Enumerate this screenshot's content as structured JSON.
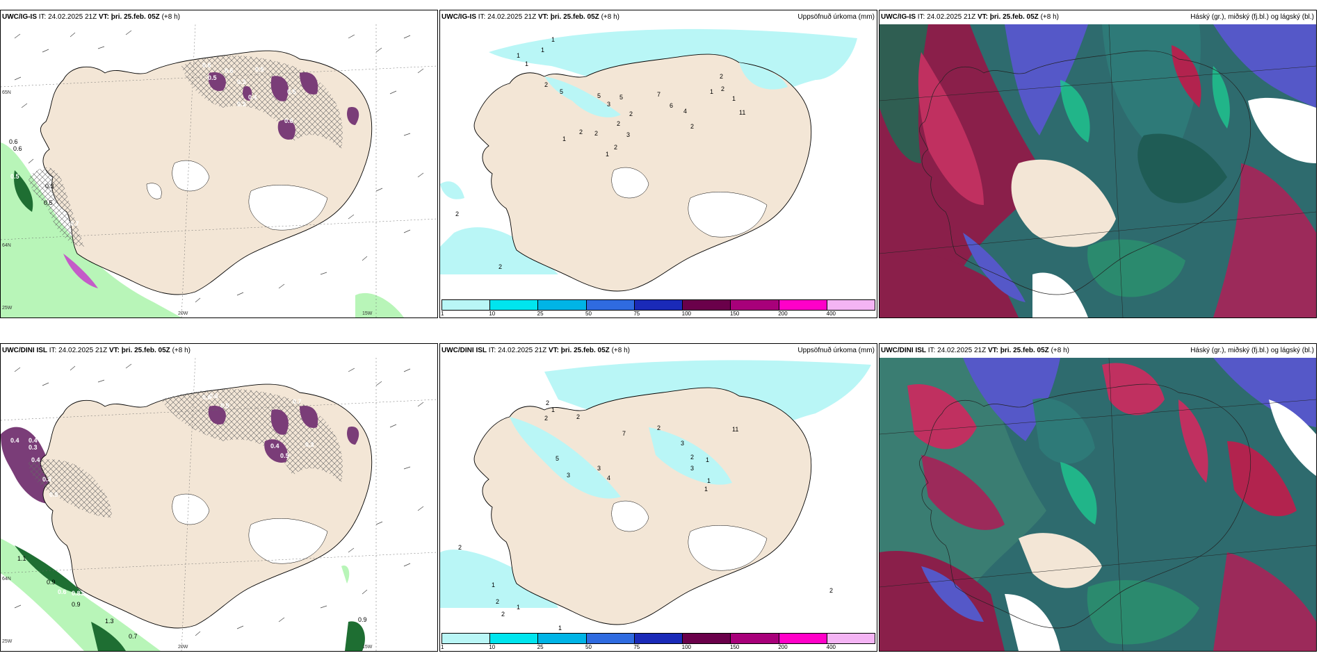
{
  "panels": {
    "p1": {
      "model": "UWC/IG-IS",
      "it": "IT: 24.02.2025 21Z",
      "vt": "VT: þri. 25.feb. 05Z",
      "lead": "(+8 h)",
      "right": ""
    },
    "p2": {
      "model": "UWC/IG-IS",
      "it": "IT: 24.02.2025 21Z",
      "vt": "VT: þri. 25.feb. 05Z",
      "lead": "(+8 h)",
      "right": "Uppsöfnuð úrkoma (mm)"
    },
    "p3": {
      "model": "UWC/IG-IS",
      "it": "IT: 24.02.2025 21Z",
      "vt": "VT: þri. 25.feb. 05Z",
      "lead": "(+8 h)",
      "right": "Háský (gr.), miðský (fj.bl.) og lágský (bl.)"
    },
    "p4": {
      "model": "UWC/DINI ISL",
      "it": "IT: 24.02.2025 21Z",
      "vt": "VT: þri. 25.feb. 05Z",
      "lead": "(+8 h)",
      "right": ""
    },
    "p5": {
      "model": "UWC/DINI ISL",
      "it": "IT: 24.02.2025 21Z",
      "vt": "VT: þri. 25.feb. 05Z",
      "lead": "(+8 h)",
      "right": "Uppsöfnuð úrkoma (mm)"
    },
    "p6": {
      "model": "UWC/DINI ISL",
      "it": "IT: 24.02.2025 21Z",
      "vt": "VT: þri. 25.feb. 05Z",
      "lead": "(+8 h)",
      "right": "Háský (gr.), miðský (fj.bl.) og lágský (bl.)"
    }
  },
  "axis_labels": {
    "lat65": "65N",
    "lat64": "64N",
    "lon20": "20W",
    "lon15": "15W",
    "lon25": "25W"
  },
  "precip_legend": {
    "colors": [
      "#b9f6f6",
      "#00e5ee",
      "#00b4e6",
      "#2f6be0",
      "#1a2ab8",
      "#6a004a",
      "#a8007a",
      "#ff00c8",
      "#f4b4f4"
    ],
    "ticks": [
      "1",
      "10",
      "25",
      "50",
      "75",
      "100",
      "150",
      "200",
      "400"
    ]
  },
  "labels": {
    "p1": [
      "0.6",
      "0.6",
      "0.5",
      "0.3",
      "0.5",
      "0.7",
      "0.6",
      "0.5",
      "0.6",
      "0.3",
      "0.4",
      "0.3",
      "0.5",
      "0.5",
      "0.6"
    ],
    "p2": [
      "1",
      "1",
      "1",
      "1",
      "2",
      "5",
      "5",
      "3",
      "5",
      "7",
      "6",
      "2",
      "2",
      "3",
      "4",
      "11",
      "2",
      "2",
      "1",
      "2",
      "1",
      "1",
      "2",
      "2",
      "1",
      "2",
      "2",
      "2"
    ],
    "p4": [
      "0.4",
      "0.4",
      "0.3",
      "0.4",
      "0.3",
      "0.5",
      "0.6",
      "0.6",
      "0.5",
      "0.7",
      "0.4",
      "0.5",
      "0.3",
      "1.1",
      "0.9",
      "0.6",
      "0.83",
      "0.9",
      "1.3",
      "0.7",
      "0.9"
    ],
    "p5": [
      "2",
      "1",
      "2",
      "2",
      "5",
      "3",
      "3",
      "4",
      "7",
      "2",
      "11",
      "3",
      "2",
      "1",
      "3",
      "1",
      "2",
      "1",
      "2",
      "2",
      "1",
      "1",
      "2",
      "1"
    ]
  },
  "colors": {
    "land": "#f3e6d6",
    "ice": "#ffffff",
    "sea": "#ffffff",
    "cyan": "#b9f6f6",
    "purple": "#7a3d78",
    "pink": "#c45bc8",
    "green_light": "#b8f5b8",
    "green_dark": "#1e6e32"
  }
}
